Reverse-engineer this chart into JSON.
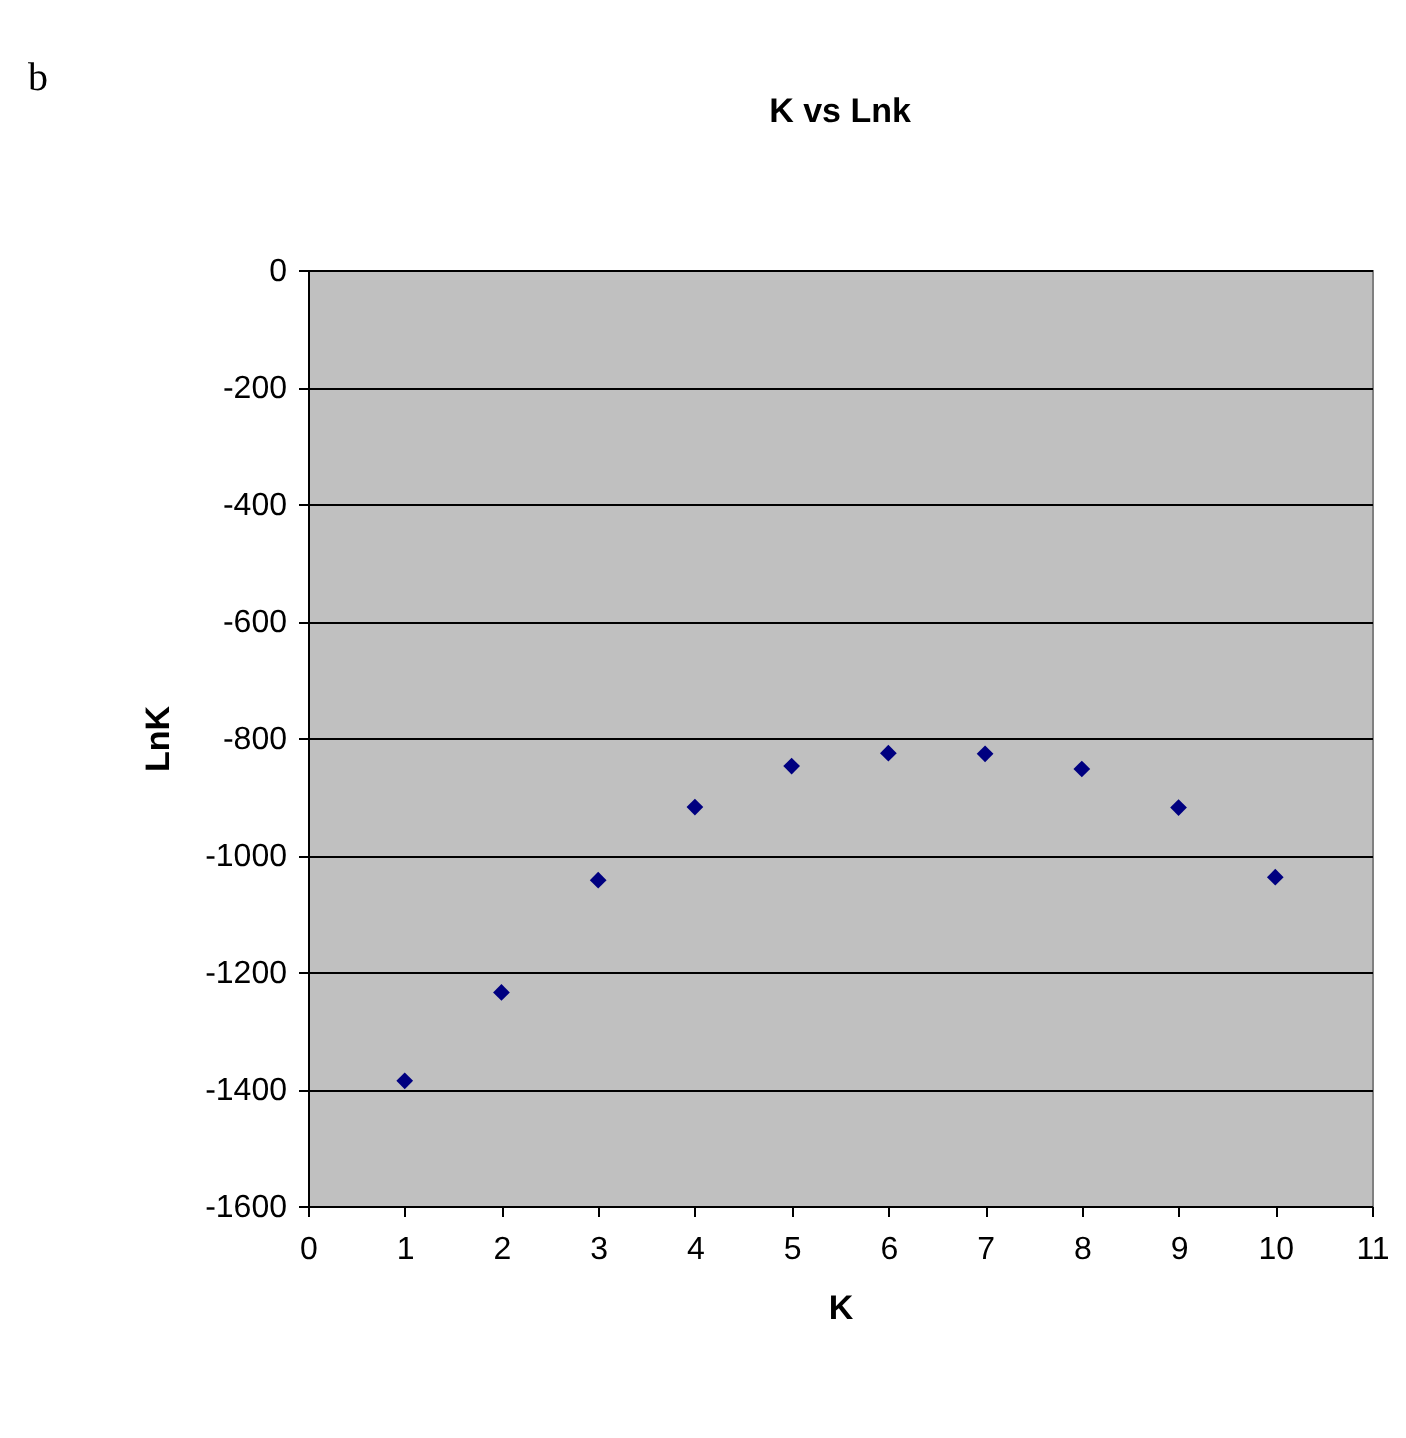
{
  "chart_data": {
    "type": "scatter",
    "title": "K vs Lnk",
    "xlabel": "K",
    "ylabel": "LnK",
    "annotations": [
      "b"
    ],
    "x": [
      1,
      2,
      3,
      4,
      5,
      6,
      7,
      8,
      9,
      10
    ],
    "series": [
      {
        "color": "#000080",
        "values": [
          -1386,
          -1235,
          -1043,
          -918,
          -848,
          -826,
          -827,
          -853,
          -919,
          -1038
        ]
      }
    ],
    "xlim": [
      0,
      11
    ],
    "xticks": [
      0,
      1,
      2,
      3,
      4,
      5,
      6,
      7,
      8,
      9,
      10,
      11
    ],
    "ylim": [
      -1600,
      0
    ],
    "yticks": [
      -1600,
      -1400,
      -1200,
      -1000,
      -800,
      -600,
      -400,
      -200,
      0
    ],
    "grid": "y",
    "marker": "diamond",
    "legend": false
  }
}
